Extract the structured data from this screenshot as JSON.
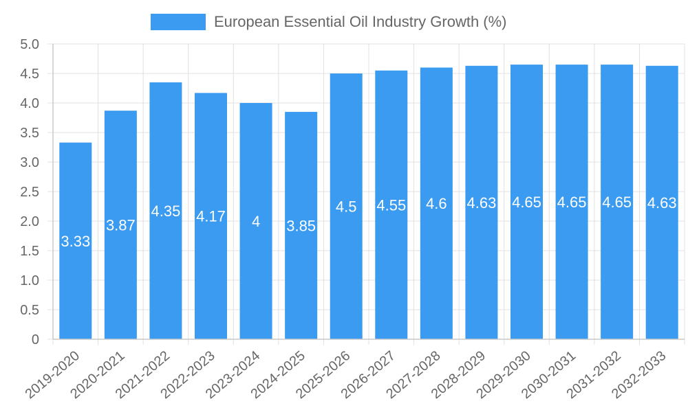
{
  "chart_data": {
    "type": "bar",
    "title": "",
    "xlabel": "",
    "ylabel": "",
    "legend": {
      "label": "European Essential Oil Industry Growth (%)",
      "position": "top"
    },
    "categories": [
      "2019-2020",
      "2020-2021",
      "2021-2022",
      "2022-2023",
      "2023-2024",
      "2024-2025",
      "2025-2026",
      "2026-2027",
      "2027-2028",
      "2028-2029",
      "2029-2030",
      "2030-2031",
      "2031-2032",
      "2032-2033"
    ],
    "values": [
      3.33,
      3.87,
      4.35,
      4.17,
      4,
      3.85,
      4.5,
      4.55,
      4.6,
      4.63,
      4.65,
      4.65,
      4.65,
      4.63
    ],
    "ylim": [
      0,
      5
    ],
    "yticks": [
      "0",
      "0.5",
      "1.0",
      "1.5",
      "2.0",
      "2.5",
      "3.0",
      "3.5",
      "4.0",
      "4.5",
      "5.0"
    ],
    "grid": true,
    "colors": {
      "bar": "#3a9bf0",
      "grid": "#e0e0e0",
      "axis": "#c8c8c8",
      "label": "#666666",
      "data_label": "#ffffff"
    }
  }
}
